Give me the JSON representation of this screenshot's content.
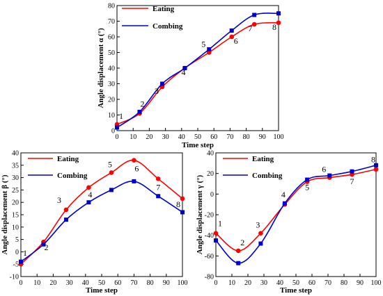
{
  "colors": {
    "eating": "#ff0000",
    "combing": "#0000cc",
    "axis": "#000000"
  },
  "chart_data": [
    {
      "type": "line",
      "xlabel": "Time step",
      "ylabel": "Angle displacement α (°)",
      "xlim": [
        0,
        100
      ],
      "ylim": [
        0,
        80
      ],
      "xticks": [
        0,
        10,
        20,
        30,
        40,
        50,
        60,
        70,
        80,
        90,
        100
      ],
      "yticks": [
        0,
        10,
        20,
        30,
        40,
        50,
        60,
        70,
        80
      ],
      "legend_position": "top-left",
      "series": [
        {
          "name": "Eating",
          "color": "#ff0000",
          "marker": "circle",
          "x": [
            0,
            14,
            28,
            42,
            57,
            71,
            85,
            100
          ],
          "y": [
            4,
            11,
            28,
            40,
            50,
            60,
            68,
            69
          ]
        },
        {
          "name": "Combing",
          "color": "#0000cc",
          "marker": "square",
          "x": [
            0,
            14,
            28,
            42,
            57,
            71,
            85,
            100
          ],
          "y": [
            2,
            12,
            30,
            40,
            52,
            64,
            74,
            75
          ]
        }
      ],
      "point_labels": [
        "1",
        "2",
        "3",
        "4",
        "5",
        "6",
        "7",
        "8"
      ]
    },
    {
      "type": "line",
      "xlabel": "Time step",
      "ylabel": "Angle displacement β (°)",
      "xlim": [
        0,
        100
      ],
      "ylim": [
        -10,
        40
      ],
      "xticks": [
        0,
        10,
        20,
        30,
        40,
        50,
        60,
        70,
        80,
        90,
        100
      ],
      "yticks": [
        -10,
        -5,
        0,
        5,
        10,
        15,
        20,
        25,
        30,
        35,
        40
      ],
      "legend_position": "top-left",
      "series": [
        {
          "name": "Eating",
          "color": "#ff0000",
          "marker": "circle",
          "x": [
            0,
            14,
            28,
            42,
            56,
            70,
            85,
            100
          ],
          "y": [
            -5,
            4,
            17,
            26,
            32,
            37,
            29.5,
            21.5
          ]
        },
        {
          "name": "Combing",
          "color": "#0000cc",
          "marker": "square",
          "x": [
            0,
            14,
            28,
            42,
            56,
            70,
            85,
            100
          ],
          "y": [
            -4,
            3,
            13,
            20,
            25,
            28.5,
            22.5,
            16
          ]
        }
      ],
      "point_labels": [
        "1",
        "2",
        "3",
        "4",
        "5",
        "6",
        "7",
        "8"
      ]
    },
    {
      "type": "line",
      "xlabel": "Time step",
      "ylabel": "Angle displacement γ (°)",
      "xlim": [
        0,
        100
      ],
      "ylim": [
        -80,
        40
      ],
      "xticks": [
        0,
        10,
        20,
        30,
        40,
        50,
        60,
        70,
        80,
        90,
        100
      ],
      "yticks": [
        -80,
        -60,
        -40,
        -20,
        0,
        20,
        40
      ],
      "legend_position": "top-left",
      "series": [
        {
          "name": "Eating",
          "color": "#ff0000",
          "marker": "circle",
          "x": [
            0,
            14,
            28,
            43,
            57,
            71,
            85,
            100
          ],
          "y": [
            -38,
            -55,
            -38,
            -10,
            12,
            16,
            19,
            24
          ]
        },
        {
          "name": "Combing",
          "color": "#0000cc",
          "marker": "square",
          "x": [
            0,
            14,
            28,
            43,
            57,
            71,
            85,
            100
          ],
          "y": [
            -45,
            -67,
            -48,
            -9,
            14,
            18,
            22,
            28
          ]
        }
      ],
      "point_labels": [
        "1",
        "2",
        "3",
        "4",
        "5",
        "6",
        "7",
        "8"
      ]
    }
  ]
}
